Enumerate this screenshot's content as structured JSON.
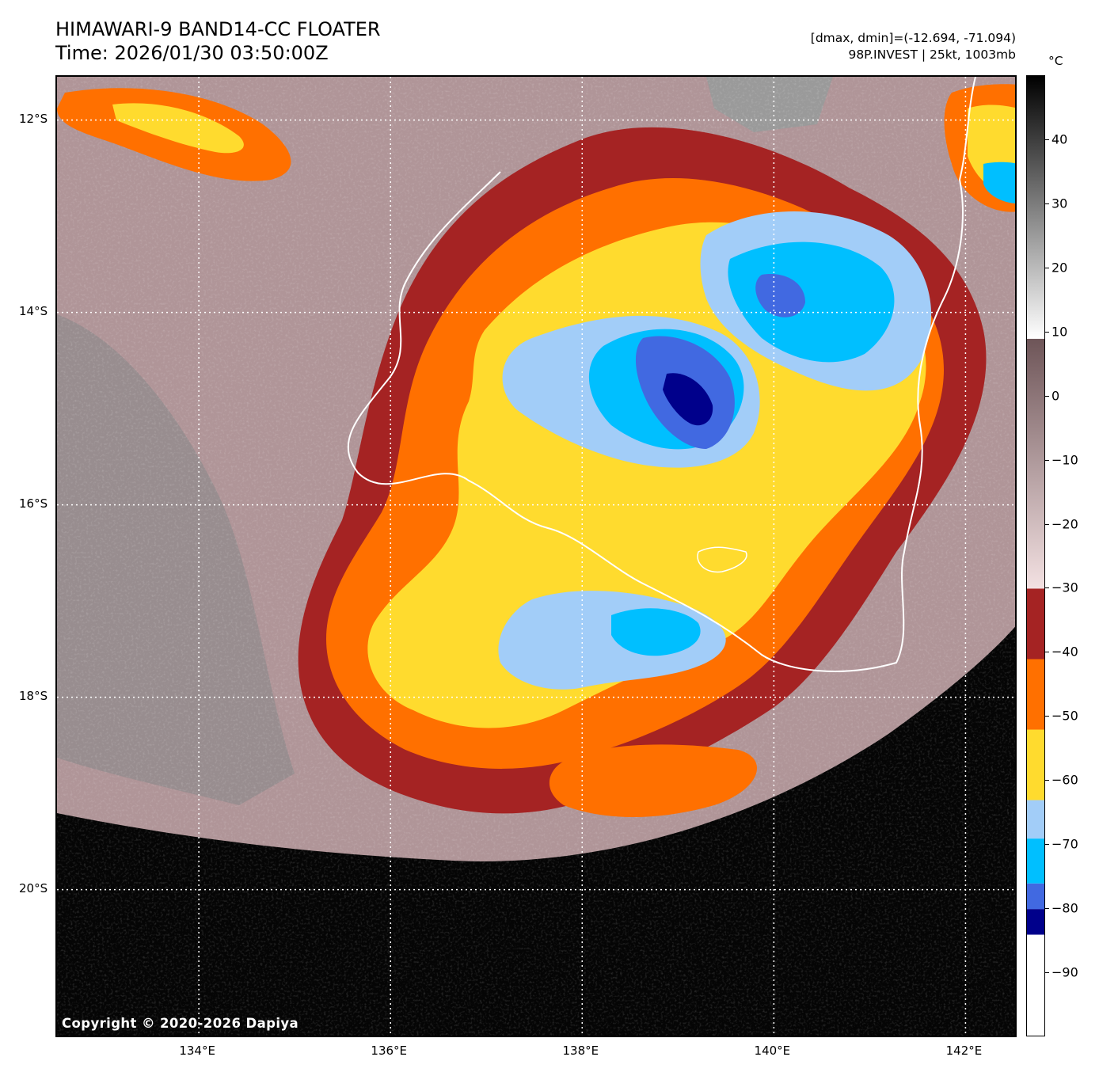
{
  "header": {
    "title_line1": "HIMAWARI-9 BAND14-CC FLOATER",
    "title_line2": "Time: 2026/01/30 03:50:00Z",
    "range_text": "[dmax, dmin]=(-12.694, -71.094)",
    "storm_text": "98P.INVEST | 25kt, 1003mb"
  },
  "map": {
    "copyright": "Copyright © 2020-2026 Dapiya",
    "lat_labels": [
      "12°S",
      "14°S",
      "16°S",
      "18°S",
      "20°S"
    ],
    "lat_values": [
      -12,
      -14,
      -16,
      -18,
      -20
    ],
    "lon_labels": [
      "134°E",
      "136°E",
      "138°E",
      "140°E",
      "142°E"
    ],
    "lon_values": [
      134,
      136,
      138,
      140,
      142
    ],
    "extent": {
      "lon_min": 132.52,
      "lon_max": 142.55,
      "lat_min": -21.55,
      "lat_max": -11.55
    },
    "colors": {
      "coastline": "#ffffff",
      "gridline": "#ffffff",
      "ocean_warm": "#000000",
      "land_clear": "#b7a0a3",
      "gray_cloud": "#9c9c9c"
    }
  },
  "colorbar": {
    "unit": "°C",
    "tick_labels": [
      "40",
      "30",
      "20",
      "10",
      "0",
      "−10",
      "−20",
      "−30",
      "−40",
      "−50",
      "−60",
      "−70",
      "−80",
      "−90"
    ],
    "tick_values": [
      40,
      30,
      20,
      10,
      0,
      -10,
      -20,
      -30,
      -40,
      -50,
      -60,
      -70,
      -80,
      -90
    ],
    "range": [
      -100,
      50
    ],
    "segments": [
      {
        "from": -100,
        "to": -84,
        "color": "#ffffff"
      },
      {
        "from": -84,
        "to": -80,
        "color": "#00008b"
      },
      {
        "from": -80,
        "to": -76,
        "color": "#4169e1"
      },
      {
        "from": -76,
        "to": -69,
        "color": "#00bfff"
      },
      {
        "from": -69,
        "to": -63,
        "color": "#a2cdf8"
      },
      {
        "from": -63,
        "to": -52,
        "color": "#ffdb2e"
      },
      {
        "from": -52,
        "to": -41,
        "color": "#ff7000"
      },
      {
        "from": -41,
        "to": -30,
        "color": "#a52323"
      }
    ],
    "gradient_low": {
      "from": -30,
      "to": 9,
      "color_bottom": "#f3e1e2",
      "color_top": "#6e5558"
    },
    "gradient_high": {
      "from": 9,
      "to": 50,
      "color_bottom": "#ffffff",
      "color_top": "#000000"
    }
  }
}
